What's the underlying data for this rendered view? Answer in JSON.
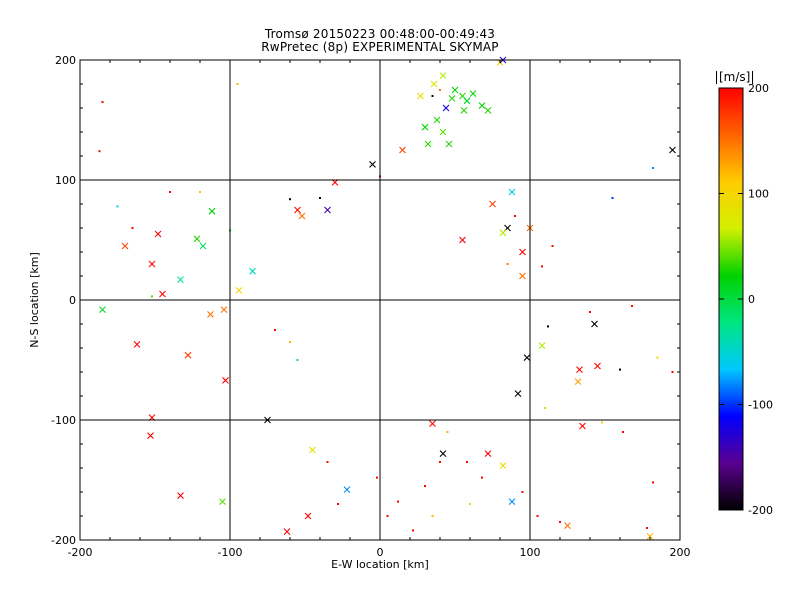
{
  "title_line1": "Tromsø 20150223 00:48:00-00:49:43",
  "title_line2": "RwPretec (8p) EXPERIMENTAL SKYMAP",
  "colorbar": {
    "label": "[m/s]",
    "ticks": [
      "200",
      "100",
      "0",
      "-100",
      "-200"
    ],
    "range": [
      -200,
      200
    ],
    "colors": [
      "#000000",
      "#5a0090",
      "#0000ff",
      "#00c8ff",
      "#00e680",
      "#00d200",
      "#d2f000",
      "#ffcc00",
      "#ff6400",
      "#ff0000"
    ]
  },
  "chart_data": {
    "type": "scatter",
    "title": "Tromsø 20150223 00:48:00-00:49:43",
    "subtitle": "RwPretec (8p) EXPERIMENTAL SKYMAP",
    "xlabel": "E-W location [km]",
    "ylabel": "N-S location [km]",
    "xlim": [
      -200,
      200
    ],
    "ylim": [
      -200,
      200
    ],
    "xticks": [
      "-200",
      "-100",
      "0",
      "100",
      "200"
    ],
    "yticks": [
      "-200",
      "-100",
      "0",
      "100",
      "200"
    ],
    "grid": true,
    "color_variable": "velocity [m/s]",
    "color_range": [
      -200,
      200
    ],
    "marker_types": [
      "cross",
      "dot"
    ],
    "points": [
      {
        "x": -185,
        "y": 165,
        "v": 200,
        "m": "dot"
      },
      {
        "x": -187,
        "y": 124,
        "v": 200,
        "m": "dot"
      },
      {
        "x": -185,
        "y": -8,
        "v": 10,
        "m": "cross"
      },
      {
        "x": -170,
        "y": 45,
        "v": 170,
        "m": "cross"
      },
      {
        "x": -162,
        "y": -37,
        "v": 200,
        "m": "cross"
      },
      {
        "x": -152,
        "y": 30,
        "v": 200,
        "m": "cross"
      },
      {
        "x": -148,
        "y": 55,
        "v": 200,
        "m": "cross"
      },
      {
        "x": -145,
        "y": 5,
        "v": 200,
        "m": "cross"
      },
      {
        "x": -152,
        "y": 3,
        "v": 40,
        "m": "dot"
      },
      {
        "x": -133,
        "y": 17,
        "v": -30,
        "m": "cross"
      },
      {
        "x": -128,
        "y": -46,
        "v": 170,
        "m": "cross"
      },
      {
        "x": -122,
        "y": 51,
        "v": 30,
        "m": "cross"
      },
      {
        "x": -118,
        "y": 45,
        "v": -10,
        "m": "cross"
      },
      {
        "x": -112,
        "y": 74,
        "v": 20,
        "m": "cross"
      },
      {
        "x": -113,
        "y": -12,
        "v": 150,
        "m": "cross"
      },
      {
        "x": -104,
        "y": -8,
        "v": 150,
        "m": "cross"
      },
      {
        "x": -103,
        "y": -67,
        "v": 200,
        "m": "cross"
      },
      {
        "x": -95,
        "y": 180,
        "v": 120,
        "m": "dot"
      },
      {
        "x": -85,
        "y": 24,
        "v": -40,
        "m": "cross"
      },
      {
        "x": -94,
        "y": 8,
        "v": 100,
        "m": "cross"
      },
      {
        "x": -100,
        "y": 58,
        "v": 20,
        "m": "dot"
      },
      {
        "x": -153,
        "y": -113,
        "v": 200,
        "m": "cross"
      },
      {
        "x": -152,
        "y": -98,
        "v": 200,
        "m": "cross"
      },
      {
        "x": -133,
        "y": -163,
        "v": 200,
        "m": "cross"
      },
      {
        "x": -105,
        "y": -168,
        "v": 40,
        "m": "cross"
      },
      {
        "x": -62,
        "y": -193,
        "v": 200,
        "m": "cross"
      },
      {
        "x": -48,
        "y": -180,
        "v": 200,
        "m": "cross"
      },
      {
        "x": -75,
        "y": -100,
        "v": -200,
        "m": "cross"
      },
      {
        "x": -55,
        "y": 75,
        "v": 200,
        "m": "cross"
      },
      {
        "x": -52,
        "y": 70,
        "v": 150,
        "m": "cross"
      },
      {
        "x": -30,
        "y": 98,
        "v": 200,
        "m": "cross"
      },
      {
        "x": -35,
        "y": 75,
        "v": -140,
        "m": "cross"
      },
      {
        "x": -60,
        "y": 84,
        "v": -200,
        "m": "dot"
      },
      {
        "x": -40,
        "y": 85,
        "v": -200,
        "m": "dot"
      },
      {
        "x": -5,
        "y": 113,
        "v": -200,
        "m": "cross"
      },
      {
        "x": 0,
        "y": 103,
        "v": 200,
        "m": "dot"
      },
      {
        "x": 15,
        "y": 125,
        "v": 170,
        "m": "cross"
      },
      {
        "x": 36,
        "y": 180,
        "v": 80,
        "m": "cross"
      },
      {
        "x": 42,
        "y": 187,
        "v": 60,
        "m": "cross"
      },
      {
        "x": 50,
        "y": 175,
        "v": 20,
        "m": "cross"
      },
      {
        "x": 55,
        "y": 170,
        "v": 30,
        "m": "cross"
      },
      {
        "x": 58,
        "y": 166,
        "v": 10,
        "m": "cross"
      },
      {
        "x": 48,
        "y": 168,
        "v": 30,
        "m": "cross"
      },
      {
        "x": 62,
        "y": 172,
        "v": 20,
        "m": "cross"
      },
      {
        "x": 44,
        "y": 160,
        "v": -120,
        "m": "cross"
      },
      {
        "x": 56,
        "y": 158,
        "v": 30,
        "m": "cross"
      },
      {
        "x": 38,
        "y": 150,
        "v": 30,
        "m": "cross"
      },
      {
        "x": 30,
        "y": 144,
        "v": 20,
        "m": "cross"
      },
      {
        "x": 42,
        "y": 140,
        "v": 40,
        "m": "cross"
      },
      {
        "x": 32,
        "y": 130,
        "v": 30,
        "m": "cross"
      },
      {
        "x": 46,
        "y": 130,
        "v": 30,
        "m": "cross"
      },
      {
        "x": 68,
        "y": 162,
        "v": 20,
        "m": "cross"
      },
      {
        "x": 72,
        "y": 158,
        "v": 30,
        "m": "cross"
      },
      {
        "x": 27,
        "y": 170,
        "v": 100,
        "m": "cross"
      },
      {
        "x": 35,
        "y": 170,
        "v": -200,
        "m": "dot"
      },
      {
        "x": 40,
        "y": 175,
        "v": 150,
        "m": "dot"
      },
      {
        "x": 80,
        "y": 198,
        "v": 100,
        "m": "cross"
      },
      {
        "x": 82,
        "y": 200,
        "v": -130,
        "m": "cross"
      },
      {
        "x": 182,
        "y": 110,
        "v": -80,
        "m": "dot"
      },
      {
        "x": 195,
        "y": 125,
        "v": -200,
        "m": "cross"
      },
      {
        "x": 155,
        "y": 85,
        "v": -100,
        "m": "dot"
      },
      {
        "x": 88,
        "y": 90,
        "v": -60,
        "m": "cross"
      },
      {
        "x": 75,
        "y": 80,
        "v": 170,
        "m": "cross"
      },
      {
        "x": 100,
        "y": 60,
        "v": 150,
        "m": "cross"
      },
      {
        "x": 95,
        "y": 40,
        "v": 200,
        "m": "cross"
      },
      {
        "x": 85,
        "y": 60,
        "v": -200,
        "m": "cross"
      },
      {
        "x": 82,
        "y": 56,
        "v": 60,
        "m": "cross"
      },
      {
        "x": 85,
        "y": 30,
        "v": 150,
        "m": "dot"
      },
      {
        "x": 108,
        "y": 28,
        "v": 200,
        "m": "dot"
      },
      {
        "x": 112,
        "y": -22,
        "v": -200,
        "m": "dot"
      },
      {
        "x": 108,
        "y": -38,
        "v": 60,
        "m": "cross"
      },
      {
        "x": 143,
        "y": -20,
        "v": -200,
        "m": "cross"
      },
      {
        "x": 133,
        "y": -58,
        "v": 200,
        "m": "cross"
      },
      {
        "x": 145,
        "y": -55,
        "v": 200,
        "m": "cross"
      },
      {
        "x": 132,
        "y": -68,
        "v": 130,
        "m": "cross"
      },
      {
        "x": 160,
        "y": -58,
        "v": -200,
        "m": "dot"
      },
      {
        "x": 185,
        "y": -48,
        "v": 100,
        "m": "dot"
      },
      {
        "x": 98,
        "y": -48,
        "v": -200,
        "m": "cross"
      },
      {
        "x": 92,
        "y": -78,
        "v": -200,
        "m": "cross"
      },
      {
        "x": 110,
        "y": -90,
        "v": 100,
        "m": "dot"
      },
      {
        "x": 135,
        "y": -105,
        "v": 200,
        "m": "cross"
      },
      {
        "x": 148,
        "y": -102,
        "v": 100,
        "m": "dot"
      },
      {
        "x": 162,
        "y": -110,
        "v": 200,
        "m": "dot"
      },
      {
        "x": 182,
        "y": -152,
        "v": 200,
        "m": "dot"
      },
      {
        "x": 178,
        "y": -190,
        "v": 200,
        "m": "dot"
      },
      {
        "x": 180,
        "y": -197,
        "v": 120,
        "m": "cross"
      },
      {
        "x": 120,
        "y": -185,
        "v": 200,
        "m": "dot"
      },
      {
        "x": 125,
        "y": -188,
        "v": 150,
        "m": "cross"
      },
      {
        "x": 105,
        "y": -180,
        "v": 200,
        "m": "dot"
      },
      {
        "x": 88,
        "y": -168,
        "v": -80,
        "m": "cross"
      },
      {
        "x": 95,
        "y": -160,
        "v": 200,
        "m": "dot"
      },
      {
        "x": 82,
        "y": -138,
        "v": 100,
        "m": "cross"
      },
      {
        "x": 72,
        "y": -128,
        "v": 200,
        "m": "cross"
      },
      {
        "x": 68,
        "y": -148,
        "v": 200,
        "m": "dot"
      },
      {
        "x": 60,
        "y": -170,
        "v": 80,
        "m": "dot"
      },
      {
        "x": 42,
        "y": -128,
        "v": -200,
        "m": "cross"
      },
      {
        "x": 40,
        "y": -135,
        "v": 200,
        "m": "dot"
      },
      {
        "x": 30,
        "y": -155,
        "v": 200,
        "m": "dot"
      },
      {
        "x": 12,
        "y": -168,
        "v": 200,
        "m": "dot"
      },
      {
        "x": 5,
        "y": -180,
        "v": 200,
        "m": "dot"
      },
      {
        "x": 35,
        "y": -180,
        "v": 120,
        "m": "dot"
      },
      {
        "x": 22,
        "y": -192,
        "v": 200,
        "m": "dot"
      },
      {
        "x": -22,
        "y": -158,
        "v": -80,
        "m": "cross"
      },
      {
        "x": -28,
        "y": -170,
        "v": 200,
        "m": "dot"
      },
      {
        "x": -2,
        "y": -148,
        "v": 200,
        "m": "dot"
      },
      {
        "x": -45,
        "y": -125,
        "v": 80,
        "m": "cross"
      },
      {
        "x": -35,
        "y": -135,
        "v": 200,
        "m": "dot"
      },
      {
        "x": 35,
        "y": -103,
        "v": 200,
        "m": "cross"
      },
      {
        "x": 58,
        "y": -135,
        "v": 200,
        "m": "dot"
      },
      {
        "x": 45,
        "y": -110,
        "v": 120,
        "m": "dot"
      },
      {
        "x": 140,
        "y": -10,
        "v": 200,
        "m": "dot"
      },
      {
        "x": 168,
        "y": -5,
        "v": 200,
        "m": "dot"
      },
      {
        "x": 55,
        "y": 50,
        "v": 200,
        "m": "cross"
      },
      {
        "x": 95,
        "y": 20,
        "v": 150,
        "m": "cross"
      },
      {
        "x": 90,
        "y": 70,
        "v": 200,
        "m": "dot"
      },
      {
        "x": 115,
        "y": 45,
        "v": 200,
        "m": "dot"
      },
      {
        "x": -120,
        "y": 90,
        "v": 120,
        "m": "dot"
      },
      {
        "x": -165,
        "y": 60,
        "v": 200,
        "m": "dot"
      },
      {
        "x": -175,
        "y": 78,
        "v": -60,
        "m": "dot"
      },
      {
        "x": -140,
        "y": 90,
        "v": 200,
        "m": "dot"
      },
      {
        "x": -70,
        "y": -25,
        "v": 200,
        "m": "dot"
      },
      {
        "x": -60,
        "y": -35,
        "v": 120,
        "m": "dot"
      },
      {
        "x": -55,
        "y": -50,
        "v": -50,
        "m": "dot"
      },
      {
        "x": 195,
        "y": -60,
        "v": 200,
        "m": "dot"
      }
    ]
  }
}
